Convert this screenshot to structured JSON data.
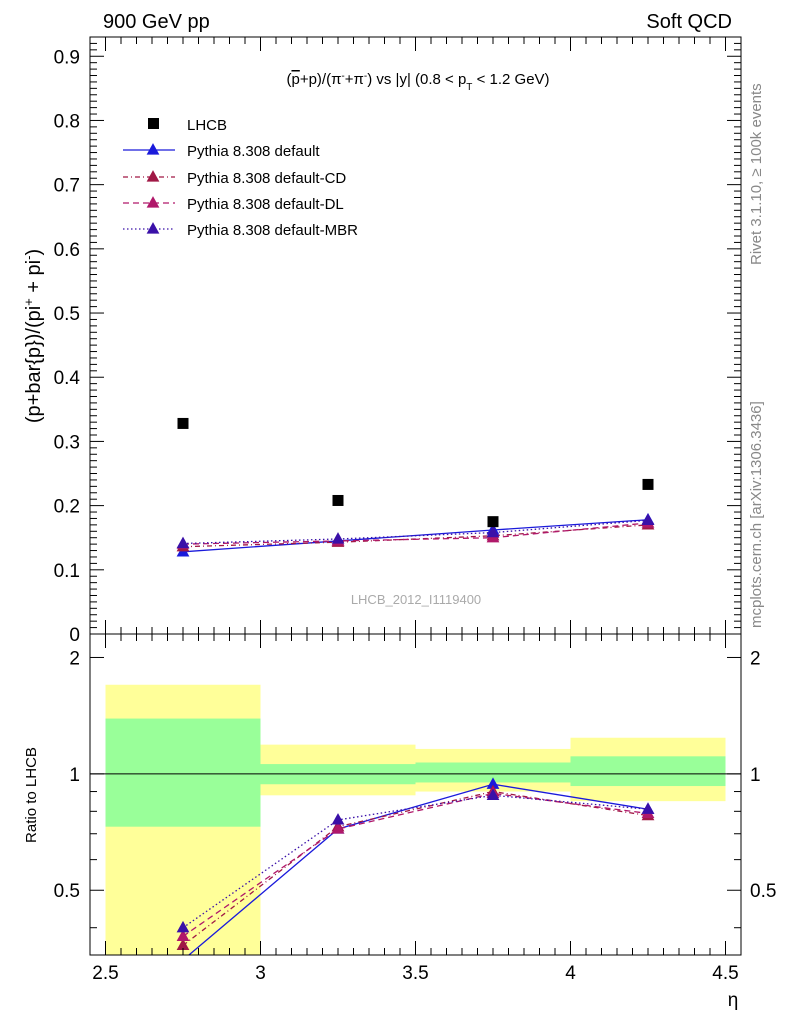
{
  "header": {
    "left": "900 GeV pp",
    "right": "Soft QCD"
  },
  "side_labels": {
    "rivet": "Rivet 3.1.10, ≥ 100k events",
    "mcplots": "mcplots.cern.ch [arXiv:1306.3436]"
  },
  "chart_data": {
    "type": "scatter",
    "title": "(p̄+p)/(π⁻+π⁻) vs |y| (0.8 < p_T < 1.2 GeV)",
    "title_parts": {
      "pre": "(",
      "pbar": "p",
      "mid1": "+p)/(π",
      "sup1": "-",
      "mid2": "+π",
      "sup2": "-",
      "mid3": ") vs |y| (0.8 < p",
      "sub": "T",
      "post": " < 1.2 GeV)"
    },
    "watermark": "LHCB_2012_I1119400",
    "xlabel": "η",
    "ylabel_main": {
      "pre": "(p+bar{p})/(pi",
      "sup1": "+",
      "mid": " + pi",
      "sup2": "-",
      "post": ")"
    },
    "ylabel_ratio": "Ratio to LHCB",
    "xlim": [
      2.45,
      4.55
    ],
    "ylim_main": [
      0,
      0.93
    ],
    "ylim_ratio": [
      0.34,
      2.3
    ],
    "x_ticks": [
      "2.5",
      "3",
      "3.5",
      "4",
      "4.5"
    ],
    "y_ticks_main": [
      "0",
      "0.1",
      "0.2",
      "0.3",
      "0.4",
      "0.5",
      "0.6",
      "0.7",
      "0.8",
      "0.9"
    ],
    "y_ticks_ratio": [
      "0.5",
      "1",
      "2"
    ],
    "bins": [
      [
        2.5,
        3.0
      ],
      [
        3.0,
        3.5
      ],
      [
        3.5,
        4.0
      ],
      [
        4.0,
        4.5
      ]
    ],
    "x": [
      2.75,
      3.25,
      3.75,
      4.25
    ],
    "data": {
      "name": "LHCB",
      "values": [
        0.328,
        0.208,
        0.175,
        0.233
      ],
      "color": "#000000"
    },
    "ratio_band_stat": [
      [
        0.73,
        1.39
      ],
      [
        0.94,
        1.06
      ],
      [
        0.95,
        1.07
      ],
      [
        0.93,
        1.11
      ]
    ],
    "ratio_band_total": [
      [
        0.34,
        1.7
      ],
      [
        0.88,
        1.19
      ],
      [
        0.9,
        1.16
      ],
      [
        0.85,
        1.24
      ]
    ],
    "series": [
      {
        "name": "Pythia 8.308 default",
        "color": "#1a1adb",
        "dash": "",
        "values": [
          0.128,
          0.145,
          0.162,
          0.178
        ],
        "ratio": [
          0.33,
          0.72,
          0.94,
          0.81
        ]
      },
      {
        "name": "Pythia 8.308 default-CD",
        "color": "#a01845",
        "dash": "5,3,1,3",
        "values": [
          0.136,
          0.143,
          0.153,
          0.17
        ],
        "ratio": [
          0.36,
          0.73,
          0.9,
          0.78
        ]
      },
      {
        "name": "Pythia 8.308 default-DL",
        "color": "#b0186a",
        "dash": "6,4",
        "values": [
          0.14,
          0.145,
          0.15,
          0.173
        ],
        "ratio": [
          0.38,
          0.72,
          0.89,
          0.79
        ]
      },
      {
        "name": "Pythia 8.308 default-MBR",
        "color": "#3a10a8",
        "dash": "1.5,2.5",
        "values": [
          0.141,
          0.148,
          0.158,
          0.177
        ],
        "ratio": [
          0.4,
          0.76,
          0.88,
          0.81
        ]
      }
    ],
    "colors": {
      "band_total": "#ffff99",
      "band_stat": "#99ff99"
    }
  }
}
